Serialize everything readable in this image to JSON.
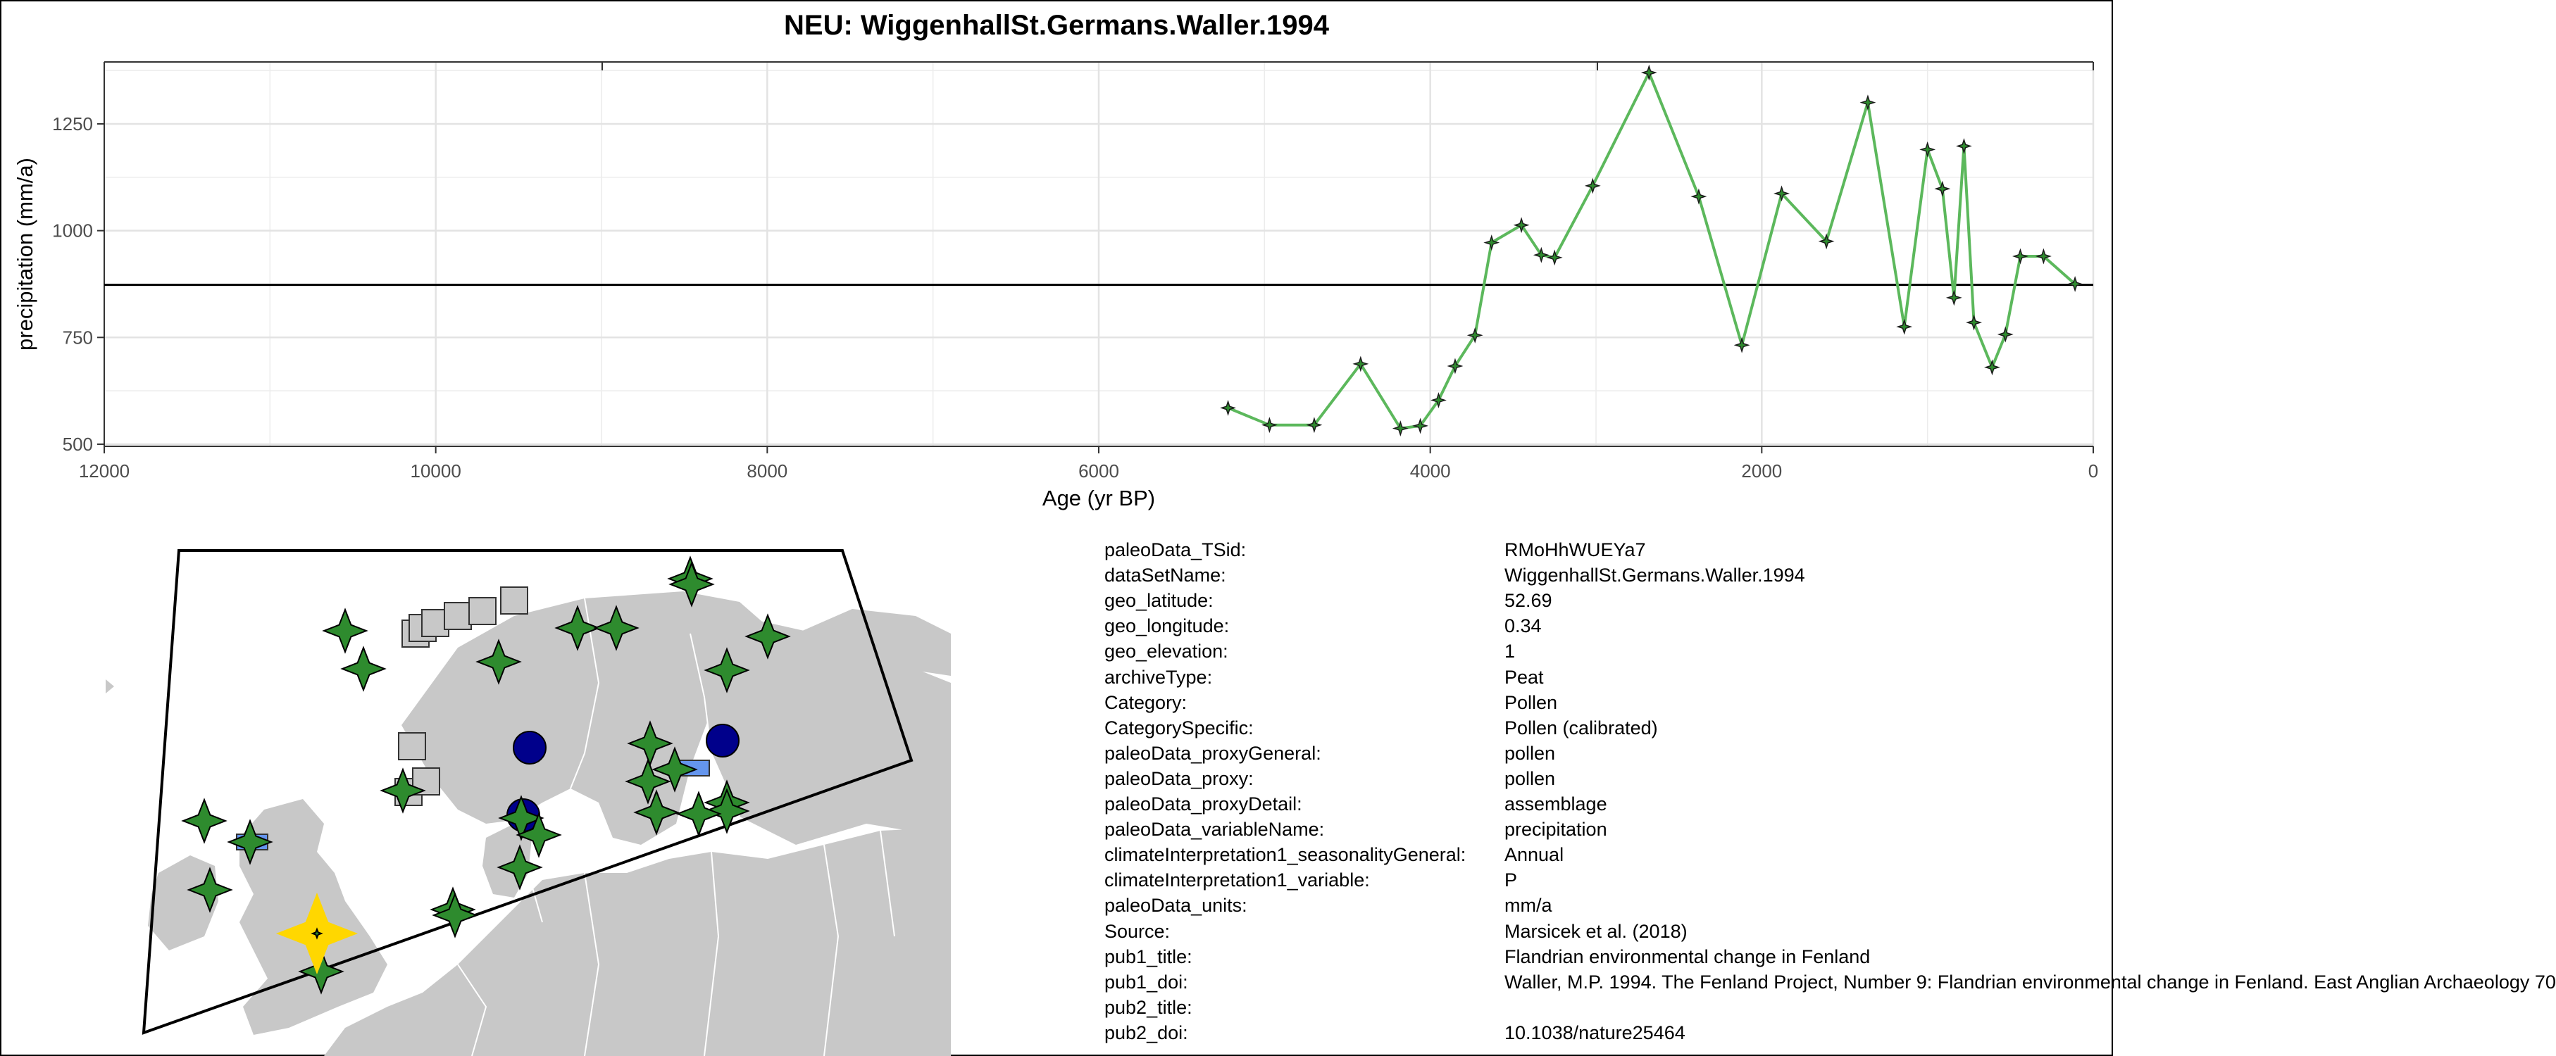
{
  "chart_data": {
    "type": "line",
    "title": "NEU: WiggenhallSt.Germans.Waller.1994",
    "xlabel": "Age (yr BP)",
    "ylabel": "precipitation (mm/a)",
    "xlim": [
      12000,
      0
    ],
    "ylim": [
      495,
      1395
    ],
    "x_reversed": true,
    "x_ticks": [
      "12000",
      "10000",
      "8000",
      "6000",
      "4000",
      "2000",
      "0"
    ],
    "y_ticks": [
      "500",
      "750",
      "1000",
      "1250"
    ],
    "grid": true,
    "reference_line": 873,
    "series_color": "#5cb85c",
    "series": [
      {
        "x": [
          5220,
          4970,
          4700,
          4420,
          4180,
          4060,
          3950,
          3850,
          3730,
          3630,
          3450,
          3330,
          3250,
          3020,
          2680,
          2380,
          2120,
          1880,
          1610,
          1360,
          1140,
          1000,
          910,
          840,
          780,
          720,
          610,
          530,
          440,
          300,
          110
        ],
        "y": [
          585,
          545,
          545,
          688,
          537,
          543,
          603,
          683,
          755,
          972,
          1013,
          943,
          937,
          1105,
          1370,
          1080,
          732,
          1087,
          975,
          1300,
          775,
          1190,
          1098,
          843,
          1198,
          785,
          680,
          757,
          940,
          940,
          875
        ]
      }
    ]
  },
  "map": {
    "colors": {
      "land": "#c8c8c8",
      "star": "#2e8b2e",
      "circle": "#00008b",
      "square": "#c8c8c8",
      "rect": "#6495ed",
      "highlight": "#ffd700"
    }
  },
  "metadata": [
    {
      "key": "paleoData_TSid:",
      "value": "RMoHhWUEYa7"
    },
    {
      "key": "dataSetName:",
      "value": "WiggenhallSt.Germans.Waller.1994"
    },
    {
      "key": "geo_latitude:",
      "value": "52.69"
    },
    {
      "key": "geo_longitude:",
      "value": "0.34"
    },
    {
      "key": "geo_elevation:",
      "value": "1"
    },
    {
      "key": "archiveType:",
      "value": "Peat"
    },
    {
      "key": "Category:",
      "value": "Pollen"
    },
    {
      "key": "CategorySpecific:",
      "value": "Pollen (calibrated)"
    },
    {
      "key": "paleoData_proxyGeneral:",
      "value": "pollen"
    },
    {
      "key": "paleoData_proxy:",
      "value": "pollen"
    },
    {
      "key": "paleoData_proxyDetail:",
      "value": "assemblage"
    },
    {
      "key": "paleoData_variableName:",
      "value": "precipitation"
    },
    {
      "key": "climateInterpretation1_seasonalityGeneral:",
      "value": "Annual"
    },
    {
      "key": "climateInterpretation1_variable:",
      "value": "P"
    },
    {
      "key": "paleoData_units:",
      "value": "mm/a"
    },
    {
      "key": "Source:",
      "value": "Marsicek et al. (2018)"
    },
    {
      "key": "pub1_title:",
      "value": "Flandrian environmental change in Fenland"
    },
    {
      "key": "pub1_doi:",
      "value": "Waller, M.P. 1994. The Fenland Project, Number 9: Flandrian environmental change in Fenland. East Anglian Archaeology 70"
    },
    {
      "key": "pub2_title:",
      "value": ""
    },
    {
      "key": "pub2_doi:",
      "value": "10.1038/nature25464"
    }
  ]
}
